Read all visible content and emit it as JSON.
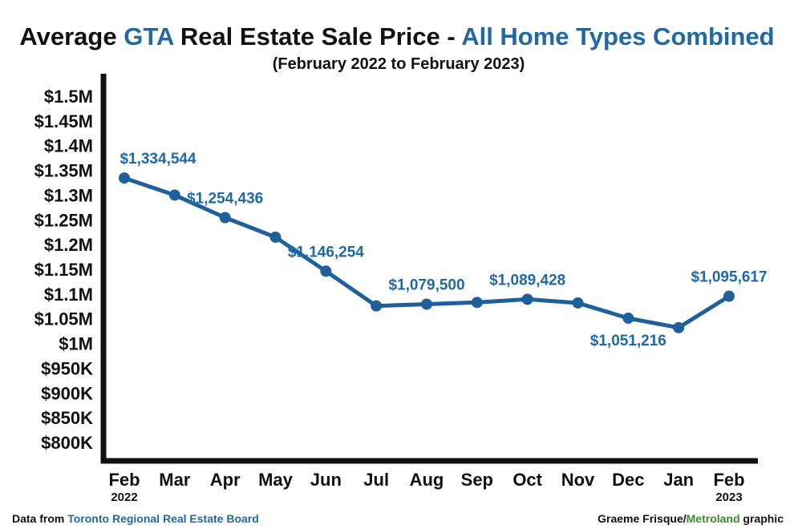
{
  "title": {
    "part1": "Average ",
    "part2": "GTA",
    "part3": " Real Estate Sale Price - ",
    "part4": "All Home Types Combined"
  },
  "subtitle": "(February 2022 to February 2023)",
  "footer": {
    "left_prefix": "Data from ",
    "left_source": "Toronto Regional Real Estate Board",
    "right_author": "Graeme Frisque/",
    "right_org": "Metroland",
    "right_suffix": " graphic"
  },
  "colors": {
    "accent": "#1f6aa6",
    "line": "#1f5f9a",
    "axis": "#111111",
    "org_green": "#3a8a2e"
  },
  "chart_data": {
    "type": "line",
    "categories": [
      "Feb",
      "Mar",
      "Apr",
      "May",
      "Jun",
      "Jul",
      "Aug",
      "Sep",
      "Oct",
      "Nov",
      "Dec",
      "Jan",
      "Feb"
    ],
    "category_sublabels": [
      "2022",
      "",
      "",
      "",
      "",
      "",
      "",
      "",
      "",
      "",
      "",
      "",
      "2023"
    ],
    "values": [
      1334544,
      1300000,
      1254436,
      1215000,
      1146254,
      1076000,
      1079500,
      1083000,
      1089428,
      1082000,
      1051216,
      1032000,
      1095617
    ],
    "data_labels": [
      {
        "index": 0,
        "text": "$1,334,544",
        "position": "above"
      },
      {
        "index": 2,
        "text": "$1,254,436",
        "position": "above"
      },
      {
        "index": 4,
        "text": "$1,146,254",
        "position": "above"
      },
      {
        "index": 6,
        "text": "$1,079,500",
        "position": "above"
      },
      {
        "index": 8,
        "text": "$1,089,428",
        "position": "above"
      },
      {
        "index": 10,
        "text": "$1,051,216",
        "position": "below"
      },
      {
        "index": 12,
        "text": "$1,095,617",
        "position": "above"
      }
    ],
    "yticks": [
      800000,
      850000,
      900000,
      950000,
      1000000,
      1050000,
      1100000,
      1150000,
      1200000,
      1250000,
      1300000,
      1350000,
      1400000,
      1450000,
      1500000
    ],
    "ytick_labels": [
      "$800K",
      "$850K",
      "$900K",
      "$950K",
      "$1M",
      "$1.05M",
      "$1.1M",
      "$1.15M",
      "$1.2M",
      "$1.25M",
      "$1.3M",
      "$1.35M",
      "$1.4M",
      "$1.45M",
      "$1.5M"
    ],
    "ylim": [
      750000,
      1550000
    ],
    "grid": false,
    "legend": "none"
  }
}
